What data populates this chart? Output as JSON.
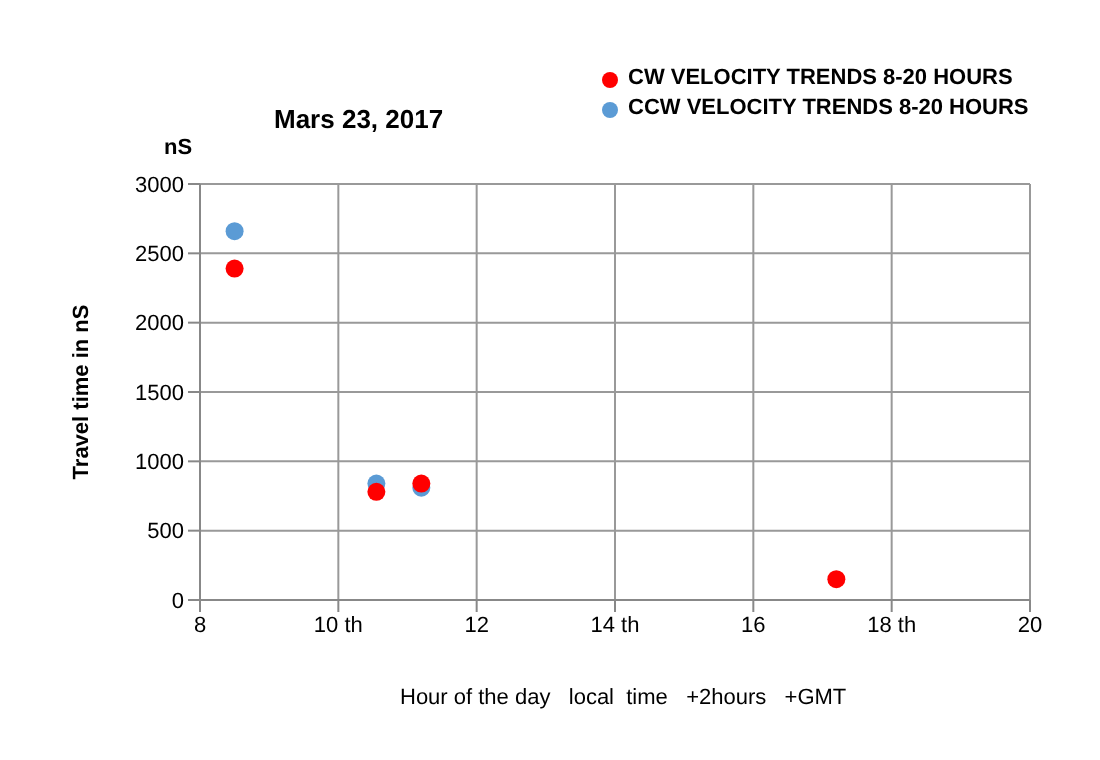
{
  "chart_data": {
    "type": "scatter",
    "title": "Mars 23, 2017",
    "xlabel": "Hour of the day   local  time   +2hours   +GMT",
    "ylabel": "Travel time in nS",
    "annotations": [
      "nS"
    ],
    "series": [
      {
        "name": "CW VELOCITY TRENDS 8-20 HOURS",
        "color": "#ff0000",
        "x": [
          8.5,
          10.55,
          11.2,
          17.2
        ],
        "values": [
          2390,
          780,
          840,
          150
        ]
      },
      {
        "name": "CCW VELOCITY TRENDS 8-20 HOURS",
        "color": "#5b9bd5",
        "x": [
          8.5,
          10.55,
          11.2
        ],
        "values": [
          2660,
          840,
          810
        ]
      }
    ],
    "xlim": [
      8,
      20
    ],
    "xticks": [
      8,
      {
        "value": 10,
        "label": "10 th"
      },
      12,
      {
        "value": 14,
        "label": "14 th"
      },
      16,
      {
        "value": 18,
        "label": "18 th"
      },
      20
    ],
    "ylim": [
      0,
      3000
    ],
    "yticks": [
      0,
      500,
      1000,
      1500,
      2000,
      2500,
      3000
    ],
    "grid": true,
    "legend": "top right",
    "marker": "circle"
  }
}
